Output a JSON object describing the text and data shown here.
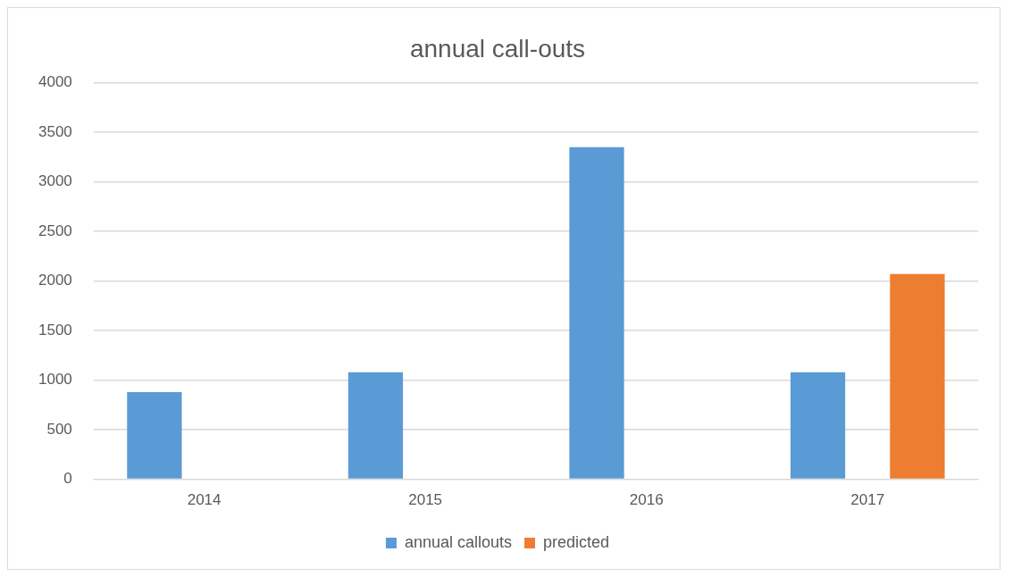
{
  "chart_data": {
    "type": "bar",
    "title": "annual call-outs",
    "categories": [
      "2014",
      "2015",
      "2016",
      "2017"
    ],
    "series": [
      {
        "name": "annual callouts",
        "color": "#5b9bd5",
        "values": [
          880,
          1080,
          3350,
          1080
        ]
      },
      {
        "name": "predicted",
        "color": "#ed7d31",
        "values": [
          null,
          null,
          null,
          2070
        ]
      }
    ],
    "ylim": [
      0,
      4000
    ],
    "yticks": [
      0,
      500,
      1000,
      1500,
      2000,
      2500,
      3000,
      3500,
      4000
    ],
    "grid": "y",
    "legend": "bottom"
  }
}
